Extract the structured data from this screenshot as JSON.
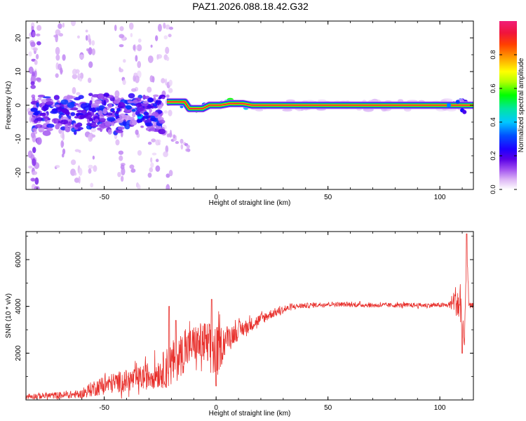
{
  "title": "PAZ1.2026.088.18.42.G32",
  "chart_data": [
    {
      "type": "heatmap",
      "xlabel": "Height of straight line (km)",
      "ylabel": "Frequency (Hz)",
      "xlim": [
        -85,
        115
      ],
      "ylim": [
        -25,
        25
      ],
      "xticks": [
        -50,
        0,
        50,
        100
      ],
      "yticks": [
        -20,
        -10,
        0,
        10,
        20
      ],
      "colorbar": {
        "label": "Normalized spectral amplitude",
        "range": [
          0,
          1
        ],
        "ticks": [
          0.0,
          0.2,
          0.4,
          0.6,
          0.8
        ],
        "colors": [
          "#ffffff",
          "#dcb4f5",
          "#a050f0",
          "#5a00e6",
          "#1e00ff",
          "#0050ff",
          "#00c8ff",
          "#00e6a0",
          "#00ff00",
          "#b4ff00",
          "#ffff00",
          "#ffa000",
          "#ff4000",
          "#f0143c",
          "#f01e78"
        ]
      },
      "ridge": [
        {
          "x": -80,
          "y": -2
        },
        {
          "x": -70,
          "y": -4
        },
        {
          "x": -60,
          "y": -3
        },
        {
          "x": -50,
          "y": -2
        },
        {
          "x": -40,
          "y": -1
        },
        {
          "x": -30,
          "y": -3
        },
        {
          "x": -25,
          "y": 1
        },
        {
          "x": -15,
          "y": 1
        },
        {
          "x": -10,
          "y": -1
        },
        {
          "x": -5,
          "y": -1
        },
        {
          "x": 0,
          "y": 0
        },
        {
          "x": 10,
          "y": 0.5
        },
        {
          "x": 20,
          "y": 0
        },
        {
          "x": 50,
          "y": 0
        },
        {
          "x": 100,
          "y": 0
        },
        {
          "x": 110,
          "y": 0
        },
        {
          "x": 115,
          "y": 0
        }
      ],
      "scatter_blobs": [
        {
          "x": -80,
          "y": -2,
          "v": 0.25
        },
        {
          "x": -77,
          "y": -3,
          "v": 0.2
        },
        {
          "x": -72,
          "y": -5,
          "v": 0.15
        },
        {
          "x": -68,
          "y": -2,
          "v": 0.18
        },
        {
          "x": -63,
          "y": -6,
          "v": 0.14
        },
        {
          "x": -60,
          "y": -3,
          "v": 0.2
        },
        {
          "x": -56,
          "y": -1,
          "v": 0.22
        },
        {
          "x": -52,
          "y": -4,
          "v": 0.18
        },
        {
          "x": -48,
          "y": -6,
          "v": 0.15
        },
        {
          "x": -45,
          "y": -2,
          "v": 0.25
        },
        {
          "x": -42,
          "y": 0,
          "v": 0.2
        },
        {
          "x": -38,
          "y": -1,
          "v": 0.3
        },
        {
          "x": -34,
          "y": -3,
          "v": 0.35
        },
        {
          "x": -30,
          "y": -3,
          "v": 0.28
        },
        {
          "x": -27,
          "y": -4,
          "v": 0.25
        },
        {
          "x": -24,
          "y": 2,
          "v": 0.2
        },
        {
          "x": -20,
          "y": 1,
          "v": 0.28
        },
        {
          "x": -16,
          "y": 0,
          "v": 0.35
        },
        {
          "x": -12,
          "y": -1,
          "v": 0.6
        },
        {
          "x": -8,
          "y": -1,
          "v": 0.7
        },
        {
          "x": -4,
          "y": 0,
          "v": 0.3
        },
        {
          "x": 2,
          "y": 0,
          "v": 0.4
        },
        {
          "x": 6,
          "y": 1,
          "v": 0.5
        },
        {
          "x": 10,
          "y": 0.5,
          "v": 0.65
        },
        {
          "x": 14,
          "y": 0,
          "v": 0.35
        },
        {
          "x": 105,
          "y": 0,
          "v": 0.35
        },
        {
          "x": 110,
          "y": 1,
          "v": 0.25
        }
      ]
    },
    {
      "type": "line",
      "xlabel": "Height of straight line (km)",
      "ylabel": "SNR (10 * v/v)",
      "xlim": [
        -85,
        115
      ],
      "ylim": [
        0,
        7200
      ],
      "xticks": [
        -50,
        0,
        50,
        100
      ],
      "yticks": [
        2000,
        4000,
        6000
      ],
      "color": "#e8302c",
      "envelope": [
        {
          "x": -85,
          "mean": 150,
          "noise": 120
        },
        {
          "x": -70,
          "mean": 200,
          "noise": 150
        },
        {
          "x": -60,
          "mean": 250,
          "noise": 180
        },
        {
          "x": -55,
          "mean": 500,
          "noise": 350
        },
        {
          "x": -45,
          "mean": 750,
          "noise": 450
        },
        {
          "x": -35,
          "mean": 900,
          "noise": 500
        },
        {
          "x": -25,
          "mean": 1200,
          "noise": 700
        },
        {
          "x": -20,
          "mean": 1500,
          "noise": 1000
        },
        {
          "x": -15,
          "mean": 2000,
          "noise": 900
        },
        {
          "x": -10,
          "mean": 2400,
          "noise": 800
        },
        {
          "x": -5,
          "mean": 2400,
          "noise": 1000
        },
        {
          "x": 0,
          "mean": 2000,
          "noise": 1200
        },
        {
          "x": 5,
          "mean": 2700,
          "noise": 500
        },
        {
          "x": 15,
          "mean": 3200,
          "noise": 300
        },
        {
          "x": 25,
          "mean": 3700,
          "noise": 200
        },
        {
          "x": 35,
          "mean": 4000,
          "noise": 120
        },
        {
          "x": 50,
          "mean": 4100,
          "noise": 100
        },
        {
          "x": 70,
          "mean": 4050,
          "noise": 100
        },
        {
          "x": 90,
          "mean": 4050,
          "noise": 100
        },
        {
          "x": 104,
          "mean": 4050,
          "noise": 100
        },
        {
          "x": 107,
          "mean": 4300,
          "noise": 600
        },
        {
          "x": 110,
          "mean": 3800,
          "noise": 1300
        },
        {
          "x": 111,
          "mean": 2200,
          "noise": 300
        },
        {
          "x": 112,
          "mean": 6800,
          "noise": 400
        },
        {
          "x": 113,
          "mean": 4000,
          "noise": 150
        },
        {
          "x": 115,
          "mean": 4050,
          "noise": 100
        }
      ],
      "spikes": [
        {
          "x": -21,
          "y": 4000
        },
        {
          "x": -18,
          "y": 3400
        },
        {
          "x": -2,
          "y": 4300
        },
        {
          "x": 0,
          "y": 600
        },
        {
          "x": 112,
          "y": 7100
        },
        {
          "x": 110,
          "y": 2000
        }
      ]
    }
  ]
}
